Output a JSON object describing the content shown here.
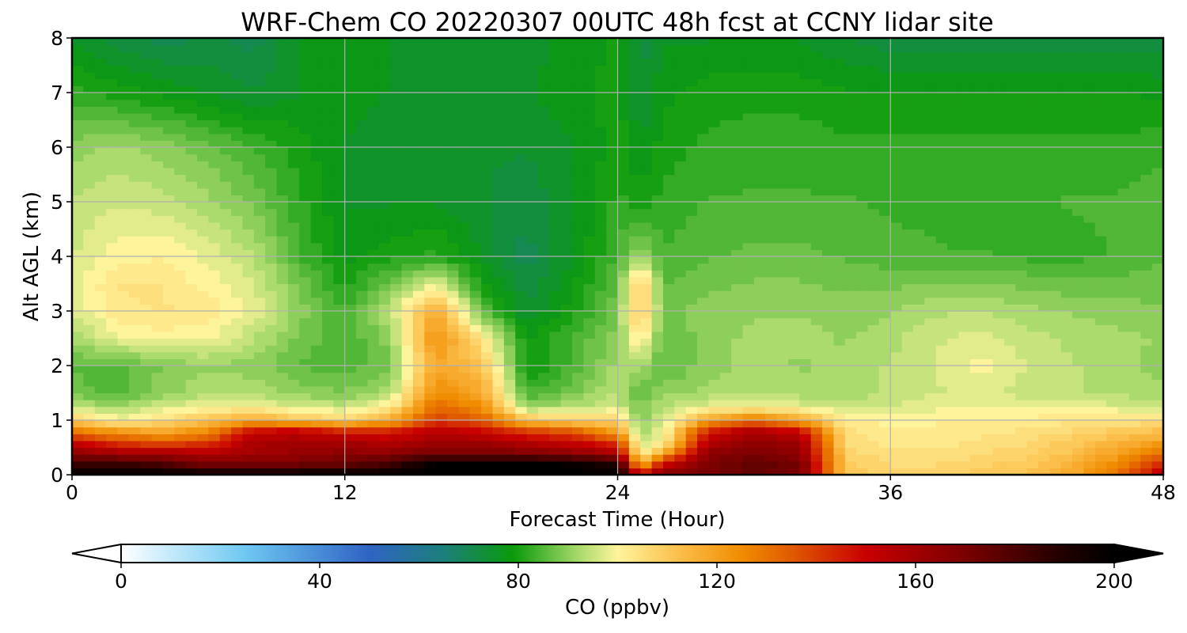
{
  "chart_data": {
    "type": "heatmap",
    "title": "WRF-Chem CO  20220307 00UTC 48h fcst at CCNY lidar site",
    "xlabel": "Forecast Time (Hour)",
    "ylabel": "Alt AGL (km)",
    "xlim": [
      0,
      48
    ],
    "ylim": [
      0,
      8
    ],
    "xticks": [
      0,
      12,
      24,
      36,
      48
    ],
    "yticks": [
      0,
      1,
      2,
      3,
      4,
      5,
      6,
      7,
      8
    ],
    "grid": true,
    "x": [
      0,
      2,
      4,
      6,
      8,
      10,
      12,
      14,
      16,
      18,
      20,
      22,
      24,
      25,
      26,
      28,
      30,
      32,
      34,
      36,
      38,
      40,
      42,
      44,
      46,
      48
    ],
    "y": [
      0,
      0.2,
      0.4,
      0.6,
      0.8,
      1.0,
      1.25,
      1.5,
      2.0,
      2.5,
      3.0,
      3.5,
      4.0,
      5.0,
      6.0,
      7.0,
      8.0
    ],
    "z": [
      [
        200,
        200,
        200,
        200,
        200,
        200,
        200,
        200,
        200,
        200,
        200,
        200,
        200,
        150,
        170,
        170,
        175,
        170,
        110,
        108,
        108,
        110,
        112,
        118,
        130,
        155
      ],
      [
        185,
        185,
        180,
        170,
        170,
        172,
        175,
        182,
        200,
        200,
        200,
        198,
        190,
        115,
        150,
        170,
        175,
        172,
        110,
        106,
        106,
        108,
        110,
        115,
        125,
        145
      ],
      [
        165,
        160,
        160,
        155,
        160,
        162,
        165,
        165,
        170,
        170,
        168,
        165,
        158,
        100,
        118,
        165,
        170,
        165,
        108,
        104,
        104,
        106,
        108,
        112,
        120,
        132
      ],
      [
        150,
        140,
        135,
        140,
        158,
        160,
        160,
        155,
        160,
        160,
        155,
        150,
        140,
        94,
        100,
        155,
        165,
        160,
        106,
        103,
        103,
        104,
        106,
        110,
        115,
        120
      ],
      [
        130,
        122,
        118,
        125,
        150,
        152,
        145,
        145,
        155,
        150,
        140,
        135,
        120,
        92,
        98,
        145,
        158,
        150,
        105,
        102,
        102,
        103,
        104,
        106,
        110,
        112
      ],
      [
        110,
        100,
        105,
        112,
        118,
        112,
        108,
        118,
        140,
        135,
        112,
        108,
        108,
        90,
        96,
        120,
        130,
        120,
        102,
        100,
        101,
        102,
        102,
        103,
        104,
        104
      ],
      [
        94,
        92,
        96,
        100,
        100,
        96,
        95,
        102,
        132,
        125,
        90,
        94,
        96,
        88,
        94,
        98,
        100,
        98,
        95,
        96,
        98,
        99,
        98,
        98,
        97,
        96
      ],
      [
        88,
        84,
        90,
        93,
        93,
        90,
        89,
        93,
        125,
        118,
        84,
        88,
        94,
        86,
        90,
        92,
        94,
        92,
        92,
        94,
        96,
        97,
        95,
        94,
        93,
        92
      ],
      [
        86,
        85,
        89,
        91,
        90,
        86,
        85,
        87,
        118,
        112,
        78,
        84,
        92,
        92,
        86,
        90,
        92,
        91,
        92,
        94,
        96,
        100,
        96,
        94,
        92,
        90
      ],
      [
        92,
        98,
        100,
        99,
        94,
        88,
        84,
        90,
        124,
        104,
        78,
        84,
        90,
        104,
        86,
        90,
        92,
        92,
        91,
        93,
        96,
        97,
        95,
        93,
        92,
        91
      ],
      [
        96,
        103,
        104,
        103,
        98,
        90,
        84,
        94,
        118,
        86,
        74,
        80,
        88,
        112,
        88,
        90,
        91,
        91,
        90,
        91,
        93,
        94,
        92,
        91,
        90,
        89
      ],
      [
        97,
        104,
        104,
        100,
        96,
        88,
        80,
        88,
        98,
        80,
        72,
        78,
        86,
        110,
        86,
        88,
        89,
        89,
        88,
        88,
        89,
        89,
        88,
        87,
        87,
        88
      ],
      [
        96,
        100,
        101,
        98,
        94,
        84,
        78,
        80,
        82,
        76,
        70,
        76,
        84,
        92,
        84,
        86,
        87,
        87,
        86,
        85,
        84,
        84,
        83,
        83,
        84,
        86
      ],
      [
        94,
        96,
        95,
        92,
        88,
        82,
        76,
        76,
        76,
        74,
        72,
        76,
        82,
        80,
        82,
        84,
        84,
        84,
        84,
        83,
        83,
        82,
        83,
        84,
        84,
        85
      ],
      [
        90,
        92,
        90,
        87,
        84,
        80,
        76,
        74,
        74,
        74,
        74,
        76,
        80,
        76,
        80,
        82,
        83,
        83,
        82,
        82,
        82,
        82,
        82,
        82,
        82,
        83
      ],
      [
        82,
        80,
        78,
        76,
        74,
        76,
        78,
        76,
        76,
        76,
        76,
        78,
        80,
        74,
        78,
        80,
        80,
        80,
        79,
        79,
        79,
        79,
        79,
        79,
        79,
        78
      ],
      [
        76,
        72,
        70,
        72,
        70,
        76,
        78,
        76,
        76,
        76,
        75,
        77,
        79,
        72,
        76,
        76,
        76,
        76,
        74,
        72,
        72,
        72,
        72,
        72,
        72,
        72
      ]
    ],
    "colorbar": {
      "label": "CO  (ppbv)",
      "min": 0,
      "max": 200,
      "ticks": [
        0,
        40,
        80,
        120,
        160,
        200
      ],
      "extend": "both",
      "colors": [
        {
          "value": 0,
          "color": "#ffffff"
        },
        {
          "value": 25,
          "color": "#6ec8f2"
        },
        {
          "value": 50,
          "color": "#2f63c4"
        },
        {
          "value": 65,
          "color": "#1c7f7a"
        },
        {
          "value": 79,
          "color": "#0a9a0a"
        },
        {
          "value": 92,
          "color": "#a6d96a"
        },
        {
          "value": 100,
          "color": "#fef49c"
        },
        {
          "value": 112,
          "color": "#fcc04e"
        },
        {
          "value": 125,
          "color": "#f08c00"
        },
        {
          "value": 135,
          "color": "#e05a00"
        },
        {
          "value": 150,
          "color": "#c80000"
        },
        {
          "value": 170,
          "color": "#7a0000"
        },
        {
          "value": 190,
          "color": "#1e0000"
        },
        {
          "value": 200,
          "color": "#000000"
        }
      ]
    }
  }
}
